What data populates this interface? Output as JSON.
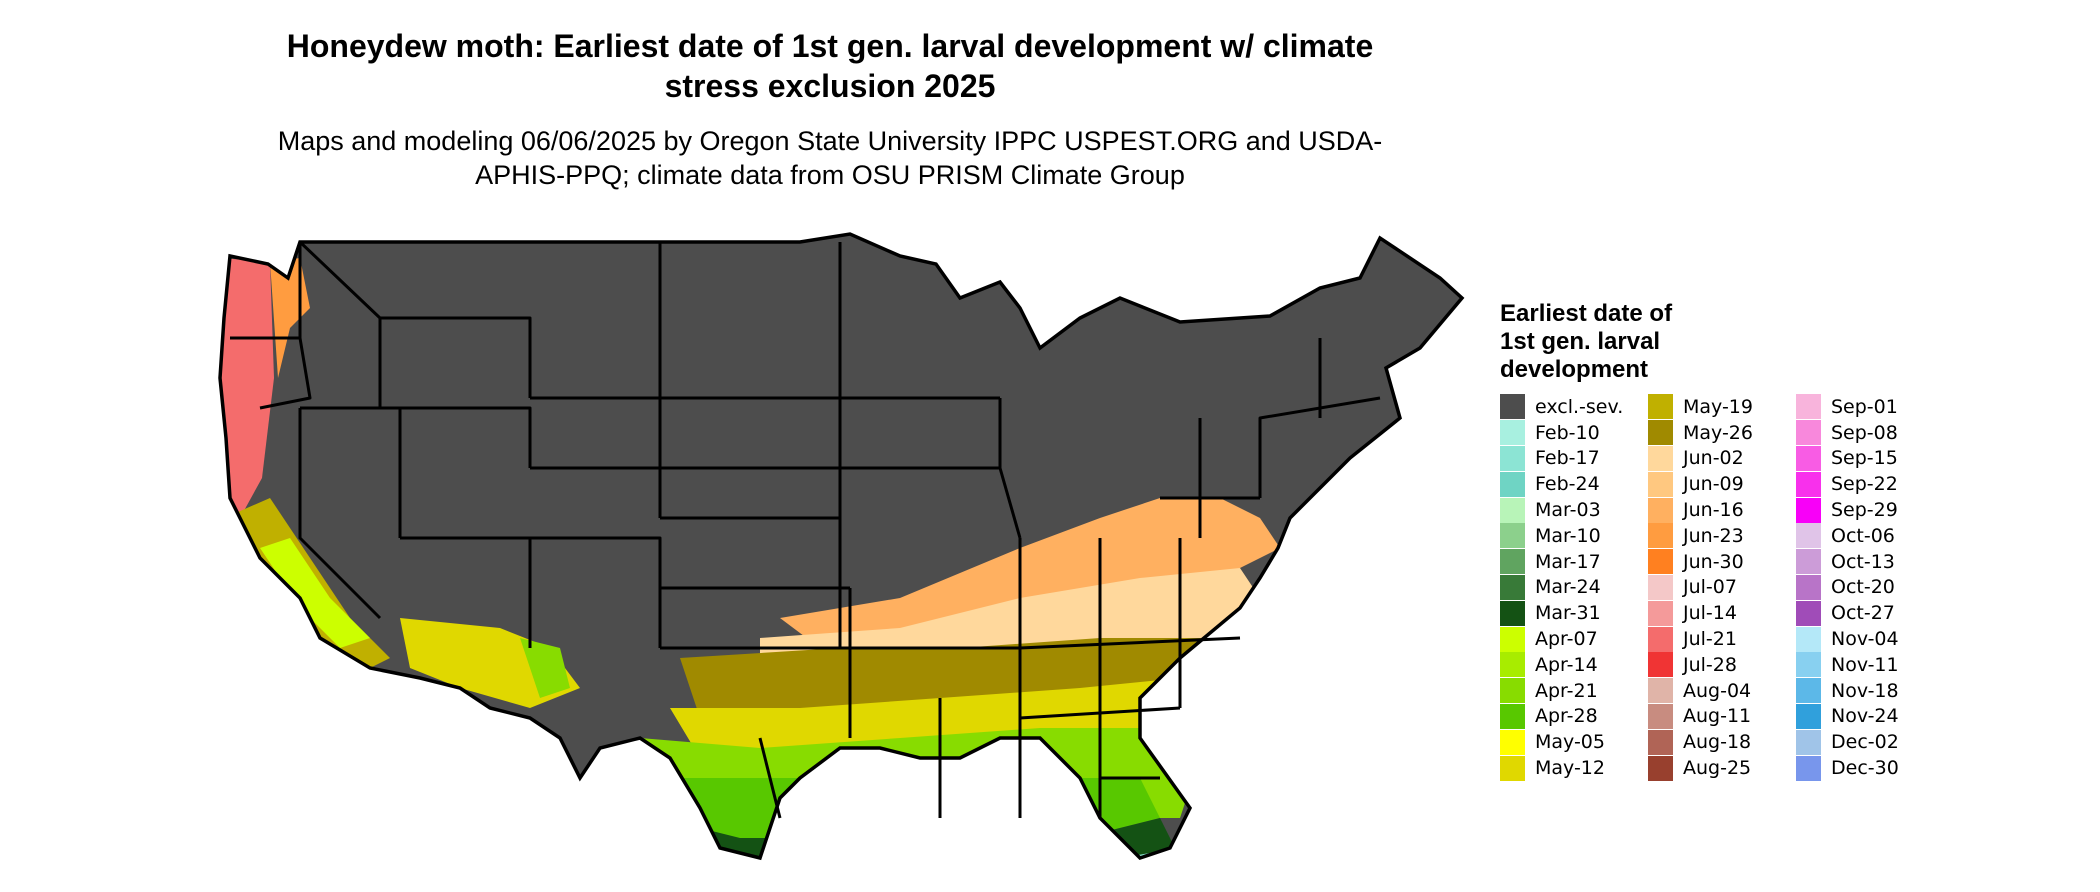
{
  "map": {
    "title": "Honeydew moth: Earliest date of 1st gen. larval development w/ climate stress exclusion 2025",
    "subtitle": "Maps and modeling 06/06/2025 by Oregon State University IPPC USPEST.ORG and USDA-APHIS-PPQ; climate data from OSU PRISM Climate Group"
  },
  "legend": {
    "title": "Earliest date of 1st gen. larval development",
    "items": [
      {
        "label": "excl.-sev.",
        "color": "#4d4d4d"
      },
      {
        "label": "Feb-10",
        "color": "#a8f0e0"
      },
      {
        "label": "Feb-17",
        "color": "#8ce4d4"
      },
      {
        "label": "Feb-24",
        "color": "#6fd4c4"
      },
      {
        "label": "Mar-03",
        "color": "#b8f4b8"
      },
      {
        "label": "Mar-10",
        "color": "#8cd08c"
      },
      {
        "label": "Mar-17",
        "color": "#60a460"
      },
      {
        "label": "Mar-24",
        "color": "#387a38"
      },
      {
        "label": "Mar-31",
        "color": "#145214"
      },
      {
        "label": "Apr-07",
        "color": "#ccff00"
      },
      {
        "label": "Apr-14",
        "color": "#a8ec00"
      },
      {
        "label": "Apr-21",
        "color": "#88dc00"
      },
      {
        "label": "Apr-28",
        "color": "#58c800"
      },
      {
        "label": "May-05",
        "color": "#ffff00"
      },
      {
        "label": "May-12",
        "color": "#e0d800"
      },
      {
        "label": "May-19",
        "color": "#c0b000"
      },
      {
        "label": "May-26",
        "color": "#a08a00"
      },
      {
        "label": "Jun-02",
        "color": "#ffd89c"
      },
      {
        "label": "Jun-09",
        "color": "#ffc880"
      },
      {
        "label": "Jun-16",
        "color": "#ffb060"
      },
      {
        "label": "Jun-23",
        "color": "#ff9c40"
      },
      {
        "label": "Jun-30",
        "color": "#ff8020"
      },
      {
        "label": "Jul-07",
        "color": "#f4c8c8"
      },
      {
        "label": "Jul-14",
        "color": "#f49a9a"
      },
      {
        "label": "Jul-21",
        "color": "#f46c6c"
      },
      {
        "label": "Jul-28",
        "color": "#f03434"
      },
      {
        "label": "Aug-04",
        "color": "#e0b4a8"
      },
      {
        "label": "Aug-11",
        "color": "#c88c80"
      },
      {
        "label": "Aug-18",
        "color": "#b06456"
      },
      {
        "label": "Aug-25",
        "color": "#98402e"
      },
      {
        "label": "Sep-01",
        "color": "#f8b4dc"
      },
      {
        "label": "Sep-08",
        "color": "#f888dc"
      },
      {
        "label": "Sep-15",
        "color": "#f85ce4"
      },
      {
        "label": "Sep-22",
        "color": "#f830ec"
      },
      {
        "label": "Sep-29",
        "color": "#f800f8"
      },
      {
        "label": "Oct-06",
        "color": "#e0c4e8"
      },
      {
        "label": "Oct-13",
        "color": "#cc9cd8"
      },
      {
        "label": "Oct-20",
        "color": "#b874c8"
      },
      {
        "label": "Oct-27",
        "color": "#a04cb8"
      },
      {
        "label": "Nov-04",
        "color": "#b4e8f8"
      },
      {
        "label": "Nov-11",
        "color": "#88d0f0"
      },
      {
        "label": "Nov-18",
        "color": "#5cb8e8"
      },
      {
        "label": "Nov-24",
        "color": "#30a0dc"
      },
      {
        "label": "Dec-02",
        "color": "#a0c4e8"
      },
      {
        "label": "Dec-30",
        "color": "#7896ec"
      }
    ]
  }
}
